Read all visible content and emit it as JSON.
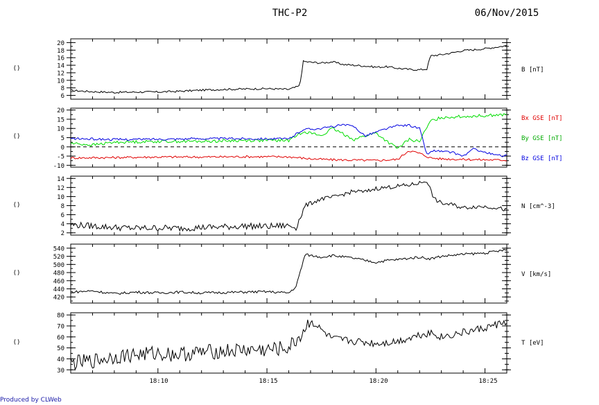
{
  "header": {
    "mission": "THC-P2",
    "date": "06/Nov/2015"
  },
  "footer": {
    "credit": "Produced by CLWeb"
  },
  "colors": {
    "bx": "#e00000",
    "by": "#00dd00",
    "bz": "#0000e0",
    "axis": "#000000",
    "footer": "#1a1aa8"
  },
  "chart_data": [
    {
      "type": "line",
      "panel_label": "()",
      "ylim": [
        5,
        21
      ],
      "yticks": [
        6,
        8,
        10,
        12,
        14,
        16,
        18,
        20
      ],
      "xlim": [
        "18:06:00",
        "18:26:00"
      ],
      "xticks": [
        "18:10",
        "18:15",
        "18:20",
        "18:25"
      ],
      "series": [
        {
          "name": "B [nT]",
          "color": "#000000",
          "x": [
            "18:06:00",
            "18:07:00",
            "18:08:00",
            "18:09:00",
            "18:10:00",
            "18:11:00",
            "18:12:00",
            "18:13:00",
            "18:14:00",
            "18:15:00",
            "18:16:00",
            "18:16:30",
            "18:16:40",
            "18:17:00",
            "18:17:30",
            "18:18:00",
            "18:18:30",
            "18:19:00",
            "18:19:30",
            "18:20:00",
            "18:20:30",
            "18:21:00",
            "18:21:30",
            "18:22:00",
            "18:22:20",
            "18:22:30",
            "18:23:00",
            "18:23:30",
            "18:24:00",
            "18:24:30",
            "18:25:00",
            "18:25:30",
            "18:26:00"
          ],
          "y": [
            7.3,
            7.0,
            6.8,
            6.9,
            6.9,
            7.1,
            7.4,
            7.6,
            7.7,
            7.8,
            7.6,
            8.5,
            15.0,
            14.8,
            14.6,
            14.9,
            14.2,
            14.0,
            13.8,
            13.5,
            13.6,
            13.2,
            12.9,
            12.8,
            13.0,
            16.5,
            16.8,
            17.3,
            17.9,
            18.1,
            18.4,
            18.8,
            19.2
          ]
        }
      ]
    },
    {
      "type": "line",
      "panel_label": "()",
      "ylim": [
        -11,
        21
      ],
      "yticks": [
        -10,
        -5,
        0,
        5,
        10,
        15,
        20
      ],
      "xlim": [
        "18:06:00",
        "18:26:00"
      ],
      "xticks": [
        "18:10",
        "18:15",
        "18:20",
        "18:25"
      ],
      "zero_line": "dashed",
      "series": [
        {
          "name": "Bx GSE [nT]",
          "color": "#e00000",
          "x": [
            "18:06:00",
            "18:08:00",
            "18:10:00",
            "18:12:00",
            "18:14:00",
            "18:16:00",
            "18:17:00",
            "18:18:00",
            "18:19:00",
            "18:20:00",
            "18:21:00",
            "18:21:30",
            "18:22:00",
            "18:22:30",
            "18:23:00",
            "18:24:00",
            "18:25:00",
            "18:26:00"
          ],
          "y": [
            -6,
            -5.8,
            -5.5,
            -5.5,
            -5.3,
            -5.4,
            -6.5,
            -7,
            -7.2,
            -7.4,
            -6.8,
            -2,
            -3.5,
            -6,
            -6.5,
            -6.8,
            -7,
            -7.2
          ]
        },
        {
          "name": "By GSE [nT]",
          "color": "#00dd00",
          "x": [
            "18:06:00",
            "18:07:00",
            "18:08:00",
            "18:10:00",
            "18:12:00",
            "18:14:00",
            "18:16:00",
            "18:16:40",
            "18:17:30",
            "18:18:00",
            "18:18:30",
            "18:19:00",
            "18:19:30",
            "18:20:00",
            "18:20:30",
            "18:21:00",
            "18:21:30",
            "18:22:00",
            "18:22:30",
            "18:23:00",
            "18:24:00",
            "18:25:00",
            "18:26:00"
          ],
          "y": [
            2,
            1,
            2.5,
            3,
            3,
            3.5,
            3.5,
            8.5,
            6,
            10,
            7,
            4,
            6,
            7.5,
            3,
            -1,
            4,
            3,
            14,
            16,
            16.5,
            17,
            17.5
          ]
        },
        {
          "name": "Bz GSE [nT]",
          "color": "#0000e0",
          "x": [
            "18:06:00",
            "18:08:00",
            "18:10:00",
            "18:12:00",
            "18:14:00",
            "18:16:00",
            "18:16:40",
            "18:17:30",
            "18:18:30",
            "18:19:00",
            "18:19:30",
            "18:20:00",
            "18:20:30",
            "18:21:00",
            "18:21:30",
            "18:22:00",
            "18:22:20",
            "18:22:40",
            "18:23:00",
            "18:23:30",
            "18:24:00",
            "18:24:30",
            "18:25:00",
            "18:25:30",
            "18:26:00"
          ],
          "y": [
            4.5,
            4,
            4.2,
            4.5,
            4.5,
            4.3,
            9.5,
            10,
            12,
            11,
            6,
            8,
            10,
            11.5,
            11.8,
            10,
            -4,
            -2,
            -2.5,
            -3,
            -5,
            -1,
            -3,
            -4.5,
            -5
          ]
        }
      ]
    },
    {
      "type": "line",
      "panel_label": "()",
      "ylim": [
        1.5,
        14.5
      ],
      "yticks": [
        2,
        4,
        6,
        8,
        10,
        12,
        14
      ],
      "xlim": [
        "18:06:00",
        "18:26:00"
      ],
      "xticks": [
        "18:10",
        "18:15",
        "18:20",
        "18:25"
      ],
      "series": [
        {
          "name": "N [cm^-3]",
          "color": "#000000",
          "x": [
            "18:06:00",
            "18:07:00",
            "18:08:00",
            "18:09:00",
            "18:10:00",
            "18:11:00",
            "18:12:00",
            "18:13:00",
            "18:14:00",
            "18:15:00",
            "18:16:00",
            "18:16:20",
            "18:16:45",
            "18:17:00",
            "18:17:30",
            "18:18:00",
            "18:18:30",
            "18:19:00",
            "18:19:30",
            "18:20:00",
            "18:20:30",
            "18:21:00",
            "18:21:30",
            "18:22:00",
            "18:22:20",
            "18:22:40",
            "18:23:00",
            "18:23:30",
            "18:24:00",
            "18:24:30",
            "18:25:00",
            "18:25:30",
            "18:26:00"
          ],
          "y": [
            3.8,
            3.5,
            3.2,
            3.0,
            3.1,
            3.0,
            3.2,
            3.3,
            3.5,
            3.4,
            3.6,
            3.2,
            8.0,
            8.5,
            9.5,
            9.8,
            10.5,
            11.2,
            11.0,
            11.8,
            12.0,
            12.3,
            12.5,
            13.0,
            13.5,
            9.5,
            8.5,
            8.2,
            7.5,
            7.8,
            7.8,
            7.6,
            7.0
          ]
        }
      ]
    },
    {
      "type": "line",
      "panel_label": "()",
      "ylim": [
        405,
        550
      ],
      "yticks": [
        420,
        440,
        460,
        480,
        500,
        520,
        540
      ],
      "xlim": [
        "18:06:00",
        "18:26:00"
      ],
      "xticks": [
        "18:10",
        "18:15",
        "18:20",
        "18:25"
      ],
      "series": [
        {
          "name": "V [km/s]",
          "color": "#000000",
          "x": [
            "18:06:00",
            "18:07:00",
            "18:08:00",
            "18:09:00",
            "18:10:00",
            "18:11:00",
            "18:12:00",
            "18:13:00",
            "18:14:00",
            "18:15:00",
            "18:16:00",
            "18:16:20",
            "18:16:45",
            "18:17:00",
            "18:17:30",
            "18:18:00",
            "18:19:00",
            "18:20:00",
            "18:20:30",
            "18:21:00",
            "18:22:00",
            "18:22:30",
            "18:23:00",
            "18:24:00",
            "18:25:00",
            "18:25:30",
            "18:26:00"
          ],
          "y": [
            432,
            435,
            428,
            432,
            430,
            432,
            430,
            431,
            432,
            433,
            430,
            445,
            525,
            522,
            518,
            522,
            515,
            505,
            510,
            512,
            518,
            514,
            520,
            525,
            528,
            532,
            536
          ]
        }
      ]
    },
    {
      "type": "line",
      "panel_label": "()",
      "ylim": [
        27,
        82
      ],
      "yticks": [
        30,
        40,
        50,
        60,
        70,
        80
      ],
      "xlim": [
        "18:06:00",
        "18:26:00"
      ],
      "xticks": [
        "18:10",
        "18:15",
        "18:20",
        "18:25"
      ],
      "series": [
        {
          "name": "T [eV]",
          "color": "#000000",
          "x": [
            "18:06:00",
            "18:07:00",
            "18:08:00",
            "18:09:00",
            "18:10:00",
            "18:11:00",
            "18:12:00",
            "18:13:00",
            "18:14:00",
            "18:15:00",
            "18:16:00",
            "18:16:30",
            "18:17:00",
            "18:17:30",
            "18:18:00",
            "18:19:00",
            "18:20:00",
            "18:21:00",
            "18:22:00",
            "18:22:30",
            "18:23:00",
            "18:24:00",
            "18:25:00",
            "18:26:00"
          ],
          "y": [
            36,
            38,
            42,
            44,
            45,
            44,
            46,
            47,
            48,
            48,
            50,
            60,
            75,
            66,
            58,
            56,
            54,
            56,
            62,
            64,
            60,
            64,
            68,
            74
          ]
        }
      ]
    }
  ]
}
